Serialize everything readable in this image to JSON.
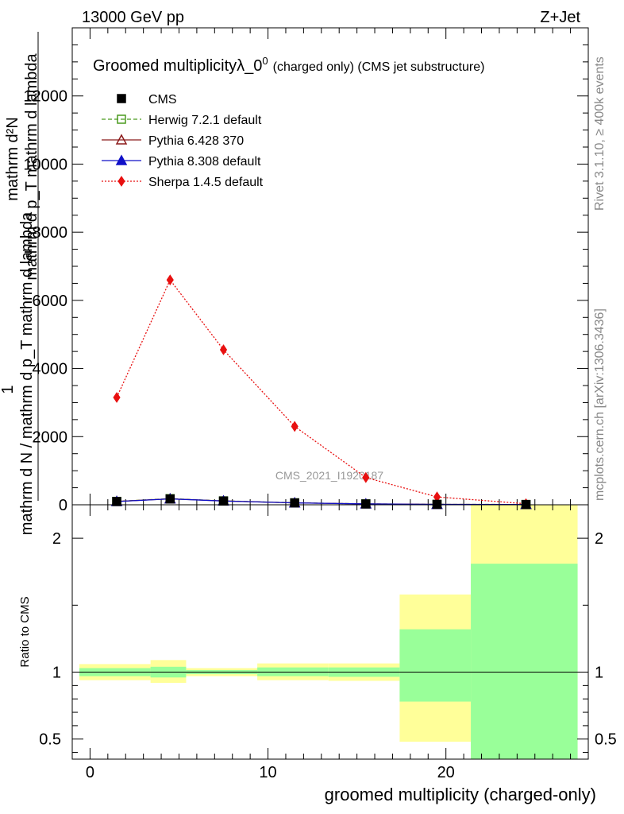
{
  "header": {
    "energy_label": "13000 GeV pp",
    "process_label": "Z+Jet"
  },
  "main_plot": {
    "title_main": "Groomed multiplicity",
    "title_symbol": "λ_0",
    "title_superscript": "0",
    "title_paren": "(charged only) (CMS jet substructure)",
    "ylabel_numerator": "mathrm d²N",
    "ylabel_denominator": "mathrm d p_T mathrm d lambda",
    "ylabel_overlay": "mathrm d N / mathrm d p_T mathrm d lambda",
    "ylabel_fraction_one": "1",
    "watermark": "CMS_2021_I1920187"
  },
  "side_labels": {
    "rivet": "Rivet 3.1.10, ≥ 400k events",
    "mcplots": "mcplots.cern.ch [arXiv:1306.3436]"
  },
  "ratio_plot": {
    "ylabel": "Ratio to CMS"
  },
  "legend": {
    "entries": [
      {
        "label": "CMS",
        "color": "#000000",
        "marker": "filled-square"
      },
      {
        "label": "Herwig 7.2.1 default",
        "color": "#4a9a1e",
        "marker": "open-square",
        "dash": "dashed"
      },
      {
        "label": "Pythia 6.428 370",
        "color": "#8b1a1a",
        "marker": "open-triangle",
        "dash": "solid"
      },
      {
        "label": "Pythia 8.308 default",
        "color": "#1010c8",
        "marker": "filled-triangle",
        "dash": "solid"
      },
      {
        "label": "Sherpa 1.4.5 default",
        "color": "#e81010",
        "marker": "filled-diamond",
        "dash": "dotted"
      }
    ]
  },
  "chart_data": [
    {
      "type": "line",
      "xlabel": "groomed multiplicity (charged-only)",
      "xlim": [
        -1,
        28
      ],
      "ylim": [
        0,
        14000
      ],
      "y_ticks": [
        0,
        2000,
        4000,
        6000,
        8000,
        10000,
        12000
      ],
      "y_tick_labels": [
        "0",
        "2000",
        "4000",
        "6000",
        "8000",
        "10000",
        "12000"
      ],
      "x_ticks": [
        0,
        10,
        20
      ],
      "x_tick_labels": [
        "0",
        "10",
        "20"
      ],
      "x": [
        1.5,
        4.5,
        7.5,
        11.5,
        15.5,
        19.5,
        24.5
      ],
      "series": [
        {
          "name": "CMS",
          "values": [
            95,
            170,
            110,
            55,
            25,
            12,
            8
          ]
        },
        {
          "name": "Herwig 7.2.1 default",
          "values": [
            100,
            180,
            115,
            58,
            27,
            13,
            8
          ]
        },
        {
          "name": "Pythia 6.428 370",
          "values": [
            98,
            175,
            112,
            56,
            26,
            12,
            8
          ]
        },
        {
          "name": "Pythia 8.308 default",
          "values": [
            97,
            172,
            111,
            55,
            25,
            12,
            8
          ]
        },
        {
          "name": "Sherpa 1.4.5 default",
          "values": [
            3150,
            6600,
            4550,
            2300,
            800,
            230,
            30
          ]
        }
      ]
    },
    {
      "type": "area",
      "ylabel": "Ratio to CMS",
      "ylim": [
        0.35,
        2.25
      ],
      "y_ticks": [
        0.5,
        1,
        2
      ],
      "y_tick_labels": [
        "0.5",
        "1",
        "2"
      ],
      "reference_line": 1,
      "bins": [
        {
          "x0": -0.6,
          "x1": 3.4,
          "green": [
            0.97,
            1.03
          ],
          "yellow": [
            0.94,
            1.06
          ]
        },
        {
          "x0": 3.4,
          "x1": 5.4,
          "green": [
            0.96,
            1.04
          ],
          "yellow": [
            0.92,
            1.09
          ]
        },
        {
          "x0": 5.4,
          "x1": 9.4,
          "green": [
            0.985,
            1.015
          ],
          "yellow": [
            0.97,
            1.03
          ]
        },
        {
          "x0": 9.4,
          "x1": 13.4,
          "green": [
            0.97,
            1.035
          ],
          "yellow": [
            0.94,
            1.065
          ]
        },
        {
          "x0": 13.4,
          "x1": 17.4,
          "green": [
            0.965,
            1.035
          ],
          "yellow": [
            0.935,
            1.065
          ]
        },
        {
          "x0": 17.4,
          "x1": 21.4,
          "green": [
            0.78,
            1.32
          ],
          "yellow": [
            0.48,
            1.58
          ]
        },
        {
          "x0": 21.4,
          "x1": 27.4,
          "green": [
            0.35,
            1.81
          ],
          "yellow": [
            0.35,
            2.25
          ]
        }
      ]
    }
  ]
}
